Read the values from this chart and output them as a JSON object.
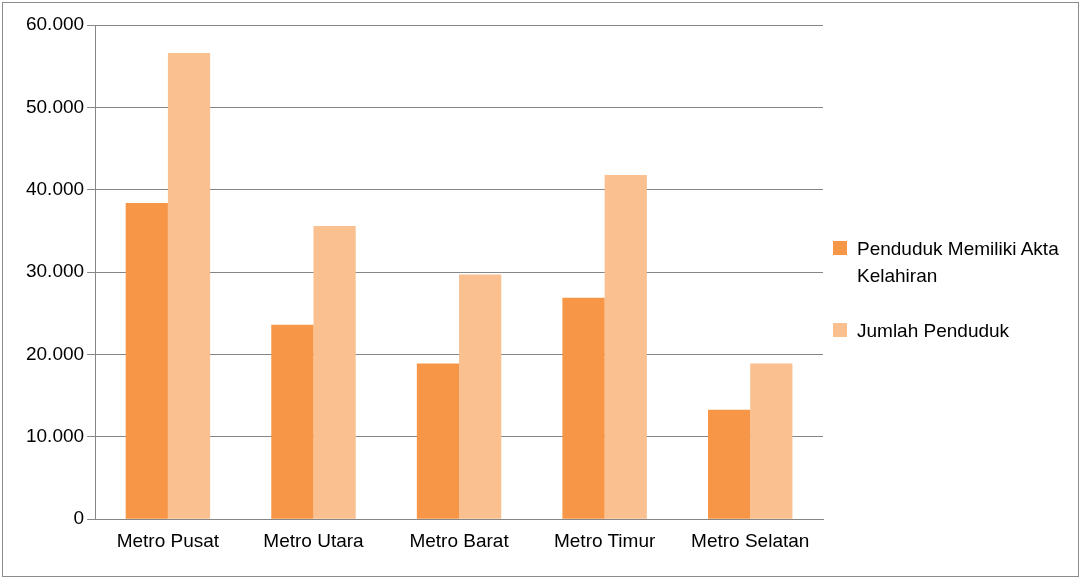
{
  "chart_data": {
    "type": "bar",
    "categories": [
      "Metro Pusat",
      "Metro Utara",
      "Metro Barat",
      "Metro Timur",
      "Metro Selatan"
    ],
    "series": [
      {
        "name": "Penduduk Memiliki Akta Kelahiran",
        "color": "#f79646",
        "values": [
          38400,
          23600,
          18900,
          26900,
          13300
        ]
      },
      {
        "name": "Jumlah Penduduk",
        "color": "#fac090",
        "values": [
          56600,
          35600,
          29700,
          41800,
          18900
        ]
      }
    ],
    "ylim": [
      0,
      60000
    ],
    "yticks": [
      {
        "value": 0,
        "label": "0"
      },
      {
        "value": 10000,
        "label": "10.000"
      },
      {
        "value": 20000,
        "label": "20.000"
      },
      {
        "value": 30000,
        "label": "30.000"
      },
      {
        "value": 40000,
        "label": "40.000"
      },
      {
        "value": 50000,
        "label": "50.000"
      },
      {
        "value": 60000,
        "label": "60.000"
      }
    ],
    "grid": "y",
    "legend": "right"
  }
}
